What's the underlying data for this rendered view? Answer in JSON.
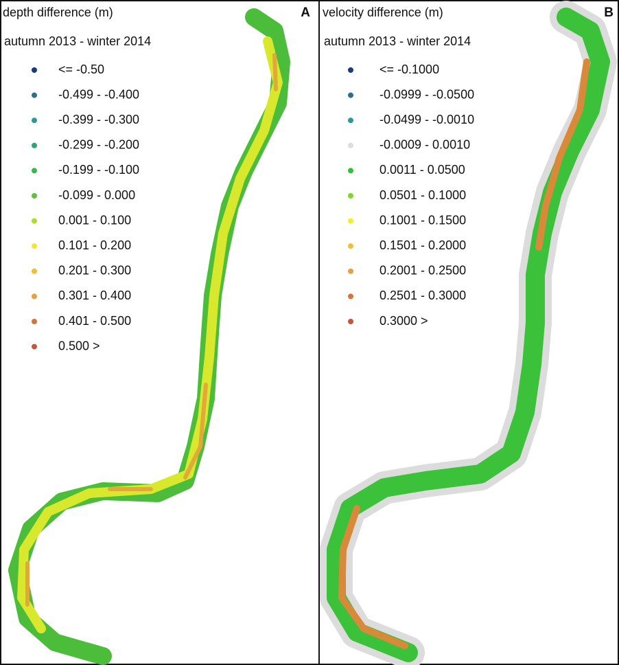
{
  "panels": [
    {
      "letter": "A",
      "title": "depth difference (m)",
      "subtitle": "autumn 2013 - winter 2014",
      "legend": [
        {
          "label": "<= -0.50",
          "color": "#1b3a7a"
        },
        {
          "label": "-0.499 - -0.400",
          "color": "#2b6f8f"
        },
        {
          "label": "-0.399 - -0.300",
          "color": "#2a9a96"
        },
        {
          "label": "-0.299 - -0.200",
          "color": "#2aa874"
        },
        {
          "label": "-0.199 - -0.100",
          "color": "#37b84a"
        },
        {
          "label": "-0.099 - 0.000",
          "color": "#5cc43a"
        },
        {
          "label": "0.001 - 0.100",
          "color": "#a8de2c"
        },
        {
          "label": "0.101 - 0.200",
          "color": "#f2e829"
        },
        {
          "label": "0.201 - 0.300",
          "color": "#f2c02a"
        },
        {
          "label": "0.301 - 0.400",
          "color": "#e8a03a"
        },
        {
          "label": "0.401 - 0.500",
          "color": "#d8733a"
        },
        {
          "label": "0.500 >",
          "color": "#c8553a"
        }
      ]
    },
    {
      "letter": "B",
      "title": "velocity difference (m)",
      "subtitle": "autumn 2013 - winter 2014",
      "legend": [
        {
          "label": "<= -0.1000",
          "color": "#1b3a7a"
        },
        {
          "label": "-0.0999 - -0.0500",
          "color": "#2b6f8f"
        },
        {
          "label": "-0.0499 - -0.0010",
          "color": "#2a9a96"
        },
        {
          "label": "-0.0009 - 0.0010",
          "color": "#dddddd"
        },
        {
          "label": "0.0011 - 0.0500",
          "color": "#2ec13a"
        },
        {
          "label": "0.0501 - 0.1000",
          "color": "#7ed62c"
        },
        {
          "label": "0.1001 - 0.1500",
          "color": "#f2ee28"
        },
        {
          "label": "0.1501 - 0.2000",
          "color": "#f2c02a"
        },
        {
          "label": "0.2001 - 0.2500",
          "color": "#e8a03a"
        },
        {
          "label": "0.2501 - 0.3000",
          "color": "#d8733a"
        },
        {
          "label": "0.3000 >",
          "color": "#c8553a"
        }
      ]
    }
  ]
}
